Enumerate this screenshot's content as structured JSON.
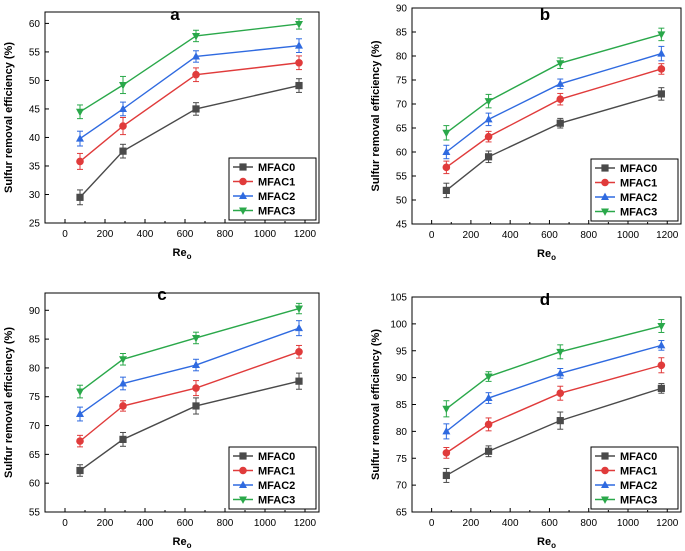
{
  "colors": {
    "MFAC0": "#4a4a4a",
    "MFAC1": "#e03b3b",
    "MFAC2": "#2f6ae0",
    "MFAC3": "#2aa84a"
  },
  "markers": {
    "MFAC0": "square",
    "MFAC1": "circle",
    "MFAC2": "triangle-up",
    "MFAC3": "triangle-down"
  },
  "chart_data": [
    {
      "type": "line",
      "panel_label": "a",
      "xlabel_main": "Re",
      "xlabel_sub": "o",
      "ylabel": "Sulfur removal efficiency (%)",
      "xlim": [
        -100,
        1270
      ],
      "ylim": [
        25,
        62
      ],
      "xticks": [
        0,
        200,
        400,
        600,
        800,
        1000,
        1200
      ],
      "yticks": [
        25,
        30,
        35,
        40,
        45,
        50,
        55,
        60
      ],
      "x": [
        75,
        290,
        655,
        1170
      ],
      "legend_position": "bottom-right",
      "series": [
        {
          "name": "MFAC0",
          "values": [
            29.5,
            37.6,
            45.0,
            49.1
          ],
          "errors": [
            1.3,
            1.2,
            1.1,
            1.2
          ]
        },
        {
          "name": "MFAC1",
          "values": [
            35.8,
            42.0,
            51.0,
            53.1
          ],
          "errors": [
            1.4,
            1.5,
            1.2,
            1.2
          ]
        },
        {
          "name": "MFAC2",
          "values": [
            39.8,
            45.0,
            54.2,
            56.1
          ],
          "errors": [
            1.3,
            1.2,
            1.0,
            1.2
          ]
        },
        {
          "name": "MFAC3",
          "values": [
            44.5,
            49.2,
            57.8,
            59.9
          ],
          "errors": [
            1.2,
            1.5,
            1.0,
            0.9
          ]
        }
      ]
    },
    {
      "type": "line",
      "panel_label": "b",
      "xlabel_main": "Re",
      "xlabel_sub": "o",
      "ylabel": "Sulfur removal efficiency (%)",
      "xlim": [
        -100,
        1270
      ],
      "ylim": [
        45,
        90
      ],
      "xticks": [
        0,
        200,
        400,
        600,
        800,
        1000,
        1200
      ],
      "yticks": [
        45,
        50,
        55,
        60,
        65,
        70,
        75,
        80,
        85,
        90
      ],
      "x": [
        75,
        290,
        655,
        1170
      ],
      "legend_position": "bottom-right",
      "series": [
        {
          "name": "MFAC0",
          "values": [
            52.0,
            59.0,
            66.0,
            72.1
          ],
          "errors": [
            1.5,
            1.2,
            1.0,
            1.3
          ]
        },
        {
          "name": "MFAC1",
          "values": [
            56.8,
            63.2,
            71.0,
            77.3
          ],
          "errors": [
            1.3,
            1.1,
            1.2,
            1.1
          ]
        },
        {
          "name": "MFAC2",
          "values": [
            60.0,
            66.8,
            74.2,
            80.5
          ],
          "errors": [
            1.4,
            1.3,
            1.0,
            1.5
          ]
        },
        {
          "name": "MFAC3",
          "values": [
            64.0,
            70.6,
            78.5,
            84.5
          ],
          "errors": [
            1.5,
            1.4,
            1.1,
            1.3
          ]
        }
      ]
    },
    {
      "type": "line",
      "panel_label": "c",
      "xlabel_main": "Re",
      "xlabel_sub": "o",
      "ylabel": "Sulfur removal efficiency (%)",
      "xlim": [
        -100,
        1270
      ],
      "ylim": [
        55,
        93
      ],
      "xticks": [
        0,
        200,
        400,
        600,
        800,
        1000,
        1200
      ],
      "yticks": [
        55,
        60,
        65,
        70,
        75,
        80,
        85,
        90
      ],
      "x": [
        75,
        290,
        655,
        1170
      ],
      "legend_position": "bottom-right",
      "series": [
        {
          "name": "MFAC0",
          "values": [
            62.2,
            67.6,
            73.4,
            77.7
          ],
          "errors": [
            1.0,
            1.2,
            1.4,
            1.4
          ]
        },
        {
          "name": "MFAC1",
          "values": [
            67.3,
            73.4,
            76.5,
            82.8
          ],
          "errors": [
            1.0,
            0.9,
            1.3,
            1.1
          ]
        },
        {
          "name": "MFAC2",
          "values": [
            72.0,
            77.3,
            80.5,
            86.9
          ],
          "errors": [
            1.2,
            1.1,
            1.0,
            1.3
          ]
        },
        {
          "name": "MFAC3",
          "values": [
            75.9,
            81.5,
            85.2,
            90.3
          ],
          "errors": [
            1.1,
            1.0,
            1.0,
            0.9
          ]
        }
      ]
    },
    {
      "type": "line",
      "panel_label": "d",
      "xlabel_main": "Re",
      "xlabel_sub": "o",
      "ylabel": "Sulfur removal efficiency (%)",
      "xlim": [
        -100,
        1270
      ],
      "ylim": [
        65,
        105
      ],
      "xticks": [
        0,
        200,
        400,
        600,
        800,
        1000,
        1200
      ],
      "yticks": [
        65,
        70,
        75,
        80,
        85,
        90,
        95,
        100,
        105
      ],
      "x": [
        75,
        290,
        655,
        1170
      ],
      "legend_position": "bottom-right",
      "series": [
        {
          "name": "MFAC0",
          "values": [
            71.8,
            76.3,
            82.0,
            88.0
          ],
          "errors": [
            1.3,
            1.0,
            1.6,
            0.9
          ]
        },
        {
          "name": "MFAC1",
          "values": [
            76.0,
            81.3,
            87.1,
            92.3
          ],
          "errors": [
            1.0,
            1.2,
            1.3,
            1.4
          ]
        },
        {
          "name": "MFAC2",
          "values": [
            80.0,
            86.2,
            90.8,
            96.0
          ],
          "errors": [
            1.4,
            1.0,
            0.9,
            0.9
          ]
        },
        {
          "name": "MFAC3",
          "values": [
            84.2,
            90.2,
            94.8,
            99.6
          ],
          "errors": [
            1.5,
            0.9,
            1.3,
            1.2
          ]
        }
      ]
    }
  ]
}
